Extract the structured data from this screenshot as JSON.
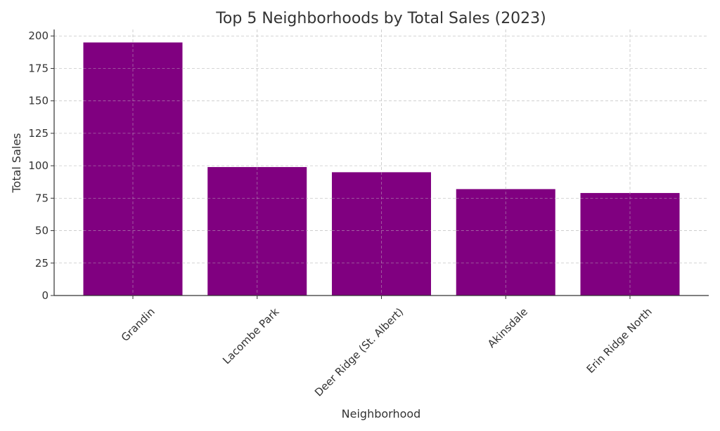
{
  "colors": {
    "bar": "#800080",
    "text": "#333333",
    "grid": "#c8c8c8"
  },
  "chart_data": {
    "type": "bar",
    "title": "Top 5 Neighborhoods by Total Sales (2023)",
    "xlabel": "Neighborhood",
    "ylabel": "Total Sales",
    "categories": [
      "Grandin",
      "Lacombe Park",
      "Deer Ridge (St. Albert)",
      "Akinsdale",
      "Erin Ridge North"
    ],
    "values": [
      195,
      99,
      95,
      82,
      79
    ],
    "ylim": [
      0,
      205
    ],
    "yticks": [
      0,
      25,
      50,
      75,
      100,
      125,
      150,
      175,
      200
    ],
    "grid": true,
    "legend": "none"
  }
}
